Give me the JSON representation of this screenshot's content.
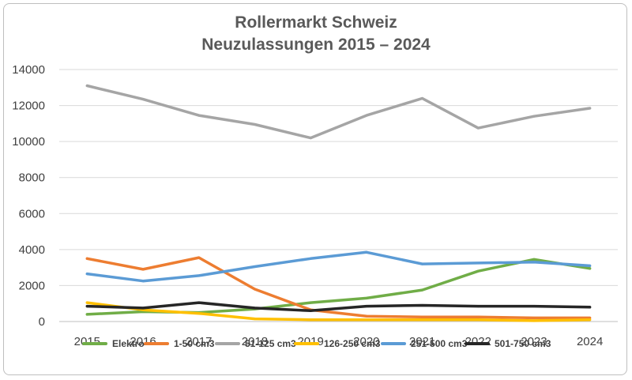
{
  "chart_data": {
    "type": "line",
    "title": "Rollermarkt Schweiz",
    "subtitle": "Neuzulassungen 2015 – 2024",
    "xlabel": "",
    "ylabel": "",
    "categories": [
      "2015",
      "2016",
      "2017",
      "2018",
      "2019",
      "2020",
      "2021",
      "2022",
      "2023",
      "2024"
    ],
    "ylim": [
      0,
      14000
    ],
    "yticks": [
      0,
      2000,
      4000,
      6000,
      8000,
      10000,
      12000,
      14000
    ],
    "grid": true,
    "legend_position": "bottom",
    "series": [
      {
        "name": "Elektro",
        "color": "#70ad47",
        "values": [
          400,
          550,
          500,
          700,
          1050,
          1300,
          1750,
          2800,
          3450,
          2950
        ]
      },
      {
        "name": "1-50 cm3",
        "color": "#ed7d31",
        "values": [
          3500,
          2900,
          3550,
          1800,
          650,
          300,
          250,
          250,
          200,
          200
        ]
      },
      {
        "name": "51-125 cm3",
        "color": "#a5a5a5",
        "values": [
          13100,
          12350,
          11450,
          10950,
          10200,
          11450,
          12400,
          10750,
          11400,
          11850
        ]
      },
      {
        "name": "126-250 cm3",
        "color": "#ffc000",
        "values": [
          1050,
          650,
          450,
          150,
          100,
          100,
          100,
          100,
          50,
          100
        ]
      },
      {
        "name": "251-500 cm3",
        "color": "#5b9bd5",
        "values": [
          2650,
          2250,
          2550,
          3050,
          3500,
          3850,
          3200,
          3250,
          3300,
          3100
        ]
      },
      {
        "name": "501-750 cm3",
        "color": "#262626",
        "values": [
          850,
          750,
          1050,
          750,
          600,
          850,
          900,
          850,
          850,
          800
        ]
      }
    ]
  }
}
